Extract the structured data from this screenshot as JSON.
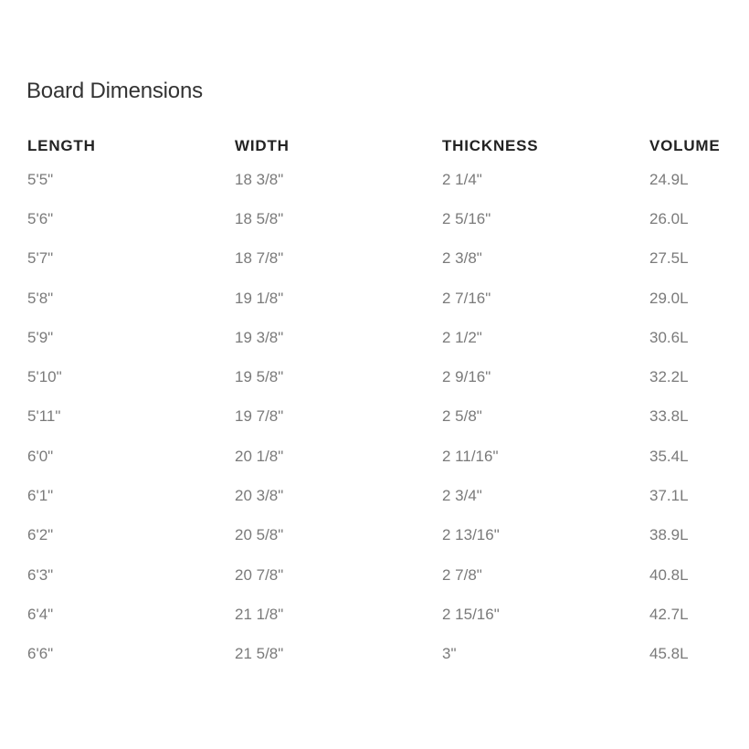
{
  "title": "Board Dimensions",
  "columns": [
    "LENGTH",
    "WIDTH",
    "THICKNESS",
    "VOLUME"
  ],
  "rows": [
    [
      "5'5\"",
      "18 3/8\"",
      "2 1/4\"",
      "24.9L"
    ],
    [
      "5'6\"",
      "18 5/8\"",
      "2 5/16\"",
      "26.0L"
    ],
    [
      "5'7\"",
      "18 7/8\"",
      "2 3/8\"",
      "27.5L"
    ],
    [
      "5'8\"",
      "19 1/8\"",
      "2 7/16\"",
      "29.0L"
    ],
    [
      "5'9\"",
      "19 3/8\"",
      "2 1/2\"",
      "30.6L"
    ],
    [
      "5'10\"",
      "19 5/8\"",
      "2 9/16\"",
      "32.2L"
    ],
    [
      "5'11\"",
      "19 7/8\"",
      "2 5/8\"",
      "33.8L"
    ],
    [
      "6'0\"",
      "20 1/8\"",
      "2 11/16\"",
      "35.4L"
    ],
    [
      "6'1\"",
      "20 3/8\"",
      "2 3/4\"",
      "37.1L"
    ],
    [
      "6'2\"",
      "20 5/8\"",
      "2 13/16\"",
      "38.9L"
    ],
    [
      "6'3\"",
      "20 7/8\"",
      "2 7/8\"",
      "40.8L"
    ],
    [
      "6'4\"",
      "21 1/8\"",
      "2 15/16\"",
      "42.7L"
    ],
    [
      "6'6\"",
      "21 5/8\"",
      "3\"",
      "45.8L"
    ]
  ]
}
